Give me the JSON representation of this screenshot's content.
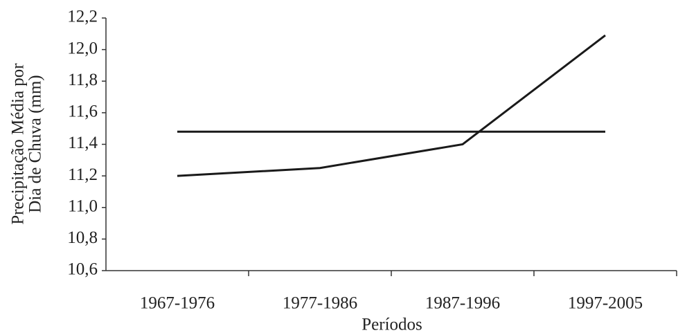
{
  "chart_data": {
    "type": "line",
    "x_label": "Períodos",
    "y_label": [
      "Precipitação Média por",
      "Dia de Chuva (mm)"
    ],
    "categories": [
      "1967-1976",
      "1977-1986",
      "1987-1996",
      "1997-2005"
    ],
    "series": [
      {
        "color": "#1a1a1a",
        "values": [
          11.2,
          11.25,
          11.4,
          12.09
        ]
      },
      {
        "color": "#1a1a1a",
        "values": [
          11.48,
          11.48,
          11.48,
          11.48
        ]
      }
    ],
    "ylim": [
      10.6,
      12.2
    ],
    "yticks": [
      {
        "value": 10.6,
        "label": "10,6"
      },
      {
        "value": 10.8,
        "label": "10,8"
      },
      {
        "value": 11.0,
        "label": "11,0"
      },
      {
        "value": 11.2,
        "label": "11,2"
      },
      {
        "value": 11.4,
        "label": "11,4"
      },
      {
        "value": 11.6,
        "label": "11,6"
      },
      {
        "value": 11.8,
        "label": "11,8"
      },
      {
        "value": 12.0,
        "label": "12,0"
      },
      {
        "value": 12.2,
        "label": "12,2"
      }
    ],
    "grid": false
  }
}
